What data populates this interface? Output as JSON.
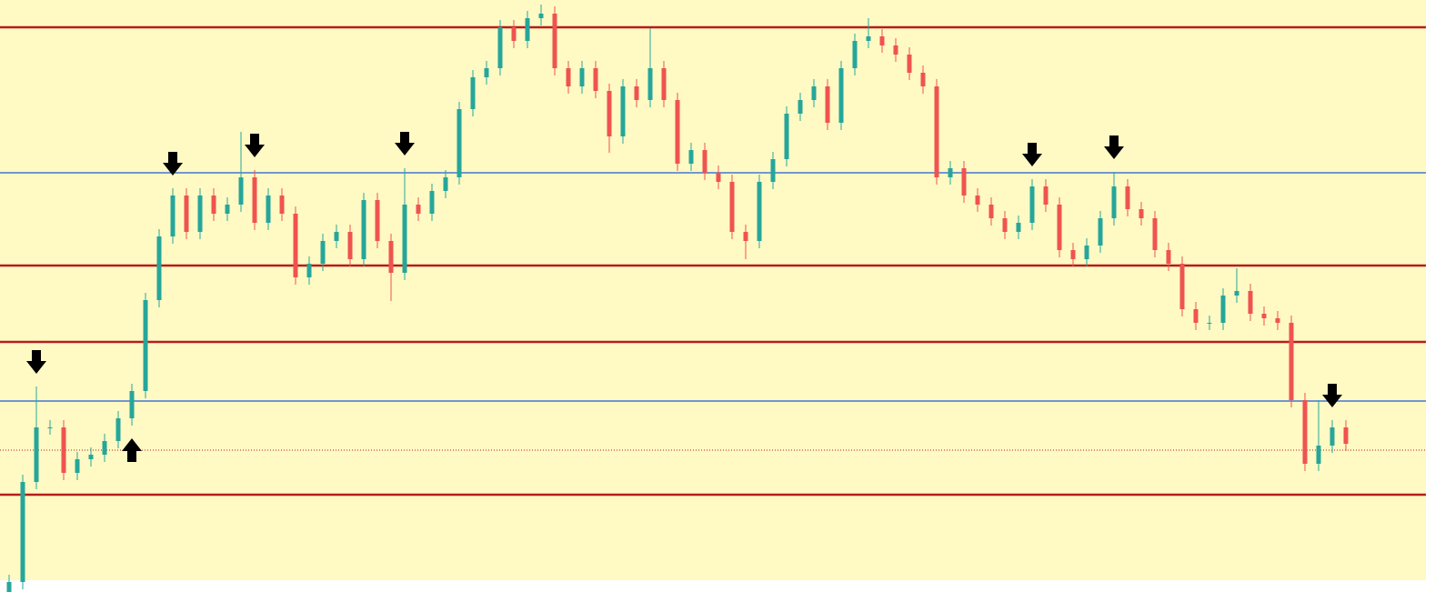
{
  "chart_data": {
    "type": "candlestick",
    "up_color": "#26a69a",
    "down_color": "#ef5350",
    "background": "#fff9c4",
    "ylim": [
      0,
      651
    ],
    "open": [
      0,
      11,
      121,
      181,
      181,
      131,
      146,
      151,
      166,
      191,
      221,
      321,
      391,
      436,
      396,
      436,
      416,
      426,
      456,
      406,
      436,
      416,
      346,
      361,
      386,
      396,
      366,
      431,
      386,
      351,
      426,
      416,
      441,
      456,
      531,
      566,
      576,
      621,
      606,
      631,
      636,
      576,
      556,
      576,
      551,
      501,
      556,
      541,
      576,
      541,
      471,
      486,
      461,
      451,
      396,
      386,
      451,
      476,
      526,
      541,
      556,
      516,
      576,
      606,
      611,
      601,
      591,
      571,
      556,
      456,
      466,
      436,
      426,
      411,
      396,
      406,
      446,
      426,
      376,
      366,
      381,
      411,
      446,
      421,
      411,
      376,
      361,
      311,
      296,
      296,
      326,
      331,
      306,
      301,
      296,
      211,
      141,
      161,
      181
    ],
    "high": [
      19,
      129,
      226,
      189,
      189,
      154,
      159,
      174,
      199,
      229,
      329,
      399,
      444,
      444,
      444,
      444,
      434,
      506,
      464,
      444,
      444,
      424,
      369,
      394,
      404,
      404,
      439,
      439,
      394,
      466,
      434,
      449,
      464,
      539,
      574,
      584,
      629,
      629,
      639,
      646,
      644,
      584,
      584,
      584,
      559,
      564,
      564,
      620,
      584,
      549,
      494,
      494,
      469,
      459,
      404,
      459,
      484,
      534,
      549,
      564,
      564,
      584,
      614,
      631,
      619,
      609,
      599,
      579,
      564,
      474,
      474,
      444,
      434,
      419,
      414,
      454,
      454,
      434,
      384,
      389,
      419,
      462,
      454,
      429,
      419,
      384,
      369,
      319,
      304,
      334,
      356,
      339,
      314,
      309,
      304,
      219,
      211,
      189,
      189
    ],
    "low": [
      0,
      3,
      113,
      173,
      123,
      123,
      138,
      143,
      158,
      183,
      213,
      313,
      383,
      388,
      388,
      408,
      408,
      418,
      398,
      398,
      408,
      338,
      338,
      353,
      378,
      358,
      358,
      378,
      320,
      343,
      408,
      408,
      433,
      448,
      523,
      558,
      568,
      598,
      598,
      623,
      568,
      548,
      548,
      543,
      483,
      493,
      533,
      533,
      533,
      463,
      463,
      453,
      443,
      388,
      366,
      378,
      443,
      468,
      518,
      533,
      508,
      508,
      568,
      598,
      593,
      583,
      563,
      548,
      448,
      448,
      428,
      418,
      403,
      388,
      388,
      398,
      418,
      368,
      358,
      358,
      373,
      403,
      413,
      403,
      368,
      353,
      303,
      288,
      288,
      288,
      318,
      298,
      293,
      288,
      203,
      133,
      133,
      153,
      155
    ],
    "close": [
      11,
      121,
      181,
      181,
      131,
      146,
      151,
      166,
      191,
      221,
      321,
      391,
      436,
      396,
      436,
      416,
      426,
      456,
      406,
      436,
      416,
      346,
      361,
      386,
      396,
      366,
      431,
      386,
      351,
      426,
      416,
      441,
      456,
      531,
      566,
      576,
      621,
      606,
      631,
      636,
      576,
      556,
      576,
      551,
      501,
      556,
      541,
      576,
      541,
      471,
      486,
      461,
      451,
      396,
      386,
      451,
      476,
      526,
      541,
      556,
      516,
      576,
      606,
      611,
      601,
      591,
      571,
      556,
      456,
      466,
      436,
      426,
      411,
      396,
      406,
      446,
      426,
      376,
      366,
      381,
      411,
      446,
      421,
      411,
      376,
      361,
      311,
      296,
      296,
      326,
      331,
      306,
      301,
      296,
      211,
      141,
      161,
      181,
      163
    ],
    "levels": [
      {
        "value": 621,
        "color": "#b71c1c",
        "style": "bold"
      },
      {
        "value": 461,
        "color": "#1e5bd6",
        "style": "thin"
      },
      {
        "value": 359,
        "color": "#b71c1c",
        "style": "bold"
      },
      {
        "value": 275,
        "color": "#b71c1c",
        "style": "bold"
      },
      {
        "value": 210,
        "color": "#1e5bd6",
        "style": "thin"
      },
      {
        "value": 156,
        "color": "#b71c1c",
        "style": "dotted"
      },
      {
        "value": 107,
        "color": "#b71c1c",
        "style": "bold"
      }
    ],
    "markers": [
      {
        "candle": 2,
        "direction": "down"
      },
      {
        "candle": 9,
        "direction": "up"
      },
      {
        "candle": 12,
        "direction": "down"
      },
      {
        "candle": 18,
        "direction": "down"
      },
      {
        "candle": 29,
        "direction": "down"
      },
      {
        "candle": 75,
        "direction": "down"
      },
      {
        "candle": 81,
        "direction": "down"
      },
      {
        "candle": 97,
        "direction": "down"
      }
    ]
  }
}
